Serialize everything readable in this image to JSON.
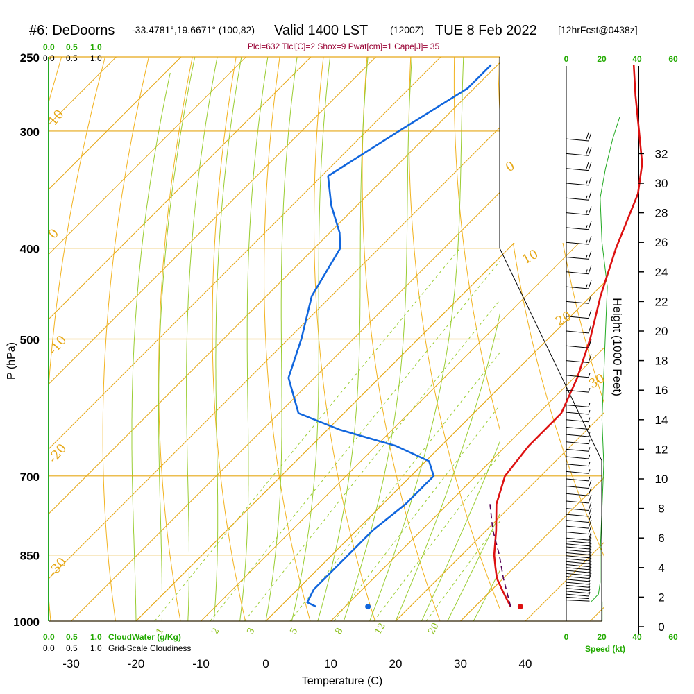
{
  "header": {
    "station": "#6: DeDoorns",
    "coords": "-33.4781°,19.6671° (100,82)",
    "valid_main": "Valid 1400 LST",
    "valid_utc": "(1200Z)",
    "date": "TUE 8 Feb 2022",
    "forecast": "[12hrFcst@0438z]"
  },
  "indices_line": "Plcl=632 Tlcl[C]=2 Shox=9 Pwat[cm]=1 Cape[J]= 35",
  "cloudwater": {
    "top_ticks": [
      "0.0",
      "0.5",
      "1.0"
    ],
    "label": "CloudWater (g/Kg)"
  },
  "cloudiness": {
    "top_ticks": [
      "0.0",
      "0.5",
      "1.0"
    ],
    "label": "Grid-Scale Cloudiness"
  },
  "wind_speed_axis": {
    "ticks": [
      "0",
      "20",
      "40",
      "60"
    ],
    "label": "Speed (kt)"
  },
  "colors": {
    "isotherm": "#e6a817",
    "dry_adiabat": "#f2b21e",
    "moist_adiabat": "#9acd32",
    "mixing_ratio": "#9acd32",
    "temperature": "#dd1111",
    "dewpoint": "#1166dd",
    "parcel": "#550055",
    "wind_barb": "#000000",
    "wind_speed": "#22aa22"
  },
  "chart_data": {
    "type": "line",
    "title": "#6: DeDoorns -33.4781°,19.6671° (100,82) Valid 1400 LST (1200Z) TUE 8 Feb 2022 [12hrFcst@0438z]",
    "xlabel": "Temperature (C)",
    "ylabel": "P (hPa)",
    "y2label": "Height (1000 Feet)",
    "xlim": [
      -35,
      45
    ],
    "ylim": [
      1000,
      250
    ],
    "y_scale": "log",
    "x_ticks": [
      -30,
      -20,
      -10,
      0,
      10,
      20,
      30,
      40
    ],
    "x_tick_labels": [
      "-30",
      "-20",
      "-10",
      "0",
      "10",
      "20",
      "30",
      "40"
    ],
    "p_ticks": [
      1000,
      850,
      700,
      500,
      400,
      300,
      250
    ],
    "p_tick_labels": [
      "1000",
      "850",
      "700",
      "500",
      "400",
      "300",
      "250"
    ],
    "height_ticks": [
      0,
      2,
      4,
      6,
      8,
      10,
      12,
      14,
      16,
      18,
      20,
      22,
      24,
      26,
      28,
      30,
      32
    ],
    "height_tick_labels": [
      "0",
      "2",
      "4",
      "6",
      "8",
      "10",
      "12",
      "14",
      "16",
      "18",
      "20",
      "22",
      "24",
      "26",
      "28",
      "30",
      "32"
    ],
    "isotherm_labels": [
      "10",
      "0",
      "-10",
      "-20",
      "-30",
      "0",
      "10",
      "20",
      "30"
    ],
    "mixing_ratio_labels": [
      "1",
      "2",
      "3",
      "5",
      "8",
      "12",
      "20"
    ],
    "grid": true,
    "series": [
      {
        "key": "temperature",
        "style": "solid",
        "points": [
          {
            "p": 965,
            "t": 35.5
          },
          {
            "p": 950,
            "t": 34.0
          },
          {
            "p": 925,
            "t": 31.5
          },
          {
            "p": 900,
            "t": 29.0
          },
          {
            "p": 875,
            "t": 27.0
          },
          {
            "p": 850,
            "t": 25.0
          },
          {
            "p": 800,
            "t": 21.5
          },
          {
            "p": 750,
            "t": 17.5
          },
          {
            "p": 700,
            "t": 14.5
          },
          {
            "p": 650,
            "t": 13.5
          },
          {
            "p": 600,
            "t": 13.5
          },
          {
            "p": 550,
            "t": 10.5
          },
          {
            "p": 500,
            "t": 6.5
          },
          {
            "p": 450,
            "t": 1.5
          },
          {
            "p": 400,
            "t": -3.5
          },
          {
            "p": 350,
            "t": -8.5
          },
          {
            "p": 325,
            "t": -12.5
          },
          {
            "p": 300,
            "t": -18.0
          },
          {
            "p": 275,
            "t": -24.0
          },
          {
            "p": 255,
            "t": -29.0
          }
        ]
      },
      {
        "key": "dewpoint",
        "style": "solid",
        "points": [
          {
            "p": 965,
            "t": 5.5
          },
          {
            "p": 955,
            "t": 3.5
          },
          {
            "p": 925,
            "t": 2.5
          },
          {
            "p": 875,
            "t": 2.5
          },
          {
            "p": 850,
            "t": 2.5
          },
          {
            "p": 800,
            "t": 2.5
          },
          {
            "p": 750,
            "t": 3.5
          },
          {
            "p": 700,
            "t": 3.5
          },
          {
            "p": 675,
            "t": 0.5
          },
          {
            "p": 650,
            "t": -7.0
          },
          {
            "p": 625,
            "t": -18.0
          },
          {
            "p": 600,
            "t": -27.0
          },
          {
            "p": 550,
            "t": -34.0
          },
          {
            "p": 500,
            "t": -38.0
          },
          {
            "p": 450,
            "t": -43.0
          },
          {
            "p": 400,
            "t": -46.0
          },
          {
            "p": 385,
            "t": -48.5
          },
          {
            "p": 360,
            "t": -54.0
          },
          {
            "p": 335,
            "t": -59.0
          },
          {
            "p": 300,
            "t": -55.0
          },
          {
            "p": 270,
            "t": -51.0
          },
          {
            "p": 255,
            "t": -51.0
          }
        ]
      },
      {
        "key": "parcel",
        "style": "dashed",
        "points": [
          {
            "p": 965,
            "t": 35.5
          },
          {
            "p": 900,
            "t": 30.0
          },
          {
            "p": 850,
            "t": 25.8
          },
          {
            "p": 800,
            "t": 21.0
          },
          {
            "p": 750,
            "t": 16.5
          }
        ]
      }
    ],
    "surface_markers": [
      {
        "key": "temperature",
        "p": 965,
        "t": 37.0
      },
      {
        "key": "dewpoint",
        "p": 965,
        "t": 13.5
      }
    ],
    "wind_profile": {
      "units": "kt",
      "levels_kft": [
        1.8,
        2.0,
        2.2,
        2.4,
        2.6,
        2.8,
        3.0,
        3.2,
        3.4,
        3.6,
        3.8,
        4.0,
        4.2,
        4.4,
        4.6,
        4.8,
        5.0,
        5.2,
        5.4,
        5.6,
        5.8,
        6.0,
        6.4,
        6.8,
        7.2,
        7.6,
        8.0,
        8.5,
        9.0,
        9.5,
        10.0,
        10.5,
        11.0,
        11.5,
        12.0,
        12.5,
        13.0,
        13.5,
        14.0,
        14.5,
        15.0,
        16.0,
        17.0,
        18.0,
        19.0,
        20.0,
        21.0,
        22.0,
        23.0,
        24.0,
        25.0,
        26.0,
        27.0,
        28.0,
        29.0,
        30.0,
        31.0,
        32.0,
        33.0
      ],
      "speed": [
        3,
        4,
        5,
        6,
        7,
        8,
        9,
        10,
        10,
        10,
        10,
        11,
        11,
        11,
        11,
        12,
        12,
        12,
        12,
        12,
        12,
        12,
        12,
        11,
        11,
        10,
        10,
        10,
        10,
        10,
        9,
        9,
        9,
        9,
        9,
        9,
        9,
        9,
        8,
        8,
        8,
        8,
        9,
        10,
        11,
        12,
        13,
        14,
        15,
        16,
        17,
        18,
        18,
        19,
        19,
        19,
        20,
        21,
        22
      ],
      "direction": [
        280,
        285,
        290,
        290,
        290,
        290,
        290,
        290,
        290,
        290,
        290,
        290,
        290,
        290,
        290,
        290,
        290,
        290,
        290,
        290,
        290,
        290,
        290,
        290,
        290,
        290,
        290,
        290,
        290,
        290,
        290,
        290,
        290,
        290,
        290,
        290,
        290,
        290,
        290,
        290,
        290,
        290,
        290,
        290,
        290,
        290,
        290,
        290,
        290,
        290,
        290,
        290,
        290,
        290,
        290,
        290,
        290,
        290,
        290
      ]
    },
    "wind_speed_line": [
      {
        "kft": 1.7,
        "speed": 14
      },
      {
        "kft": 2.2,
        "speed": 18
      },
      {
        "kft": 3.0,
        "speed": 19
      },
      {
        "kft": 5.0,
        "speed": 19
      },
      {
        "kft": 8.0,
        "speed": 20
      },
      {
        "kft": 11.0,
        "speed": 21
      },
      {
        "kft": 14.0,
        "speed": 20
      },
      {
        "kft": 17.0,
        "speed": 21
      },
      {
        "kft": 20.0,
        "speed": 22
      },
      {
        "kft": 23.0,
        "speed": 23
      },
      {
        "kft": 26.0,
        "speed": 20
      },
      {
        "kft": 29.0,
        "speed": 19
      },
      {
        "kft": 31.0,
        "speed": 22
      },
      {
        "kft": 33.0,
        "speed": 26
      },
      {
        "kft": 34.5,
        "speed": 30
      }
    ]
  }
}
